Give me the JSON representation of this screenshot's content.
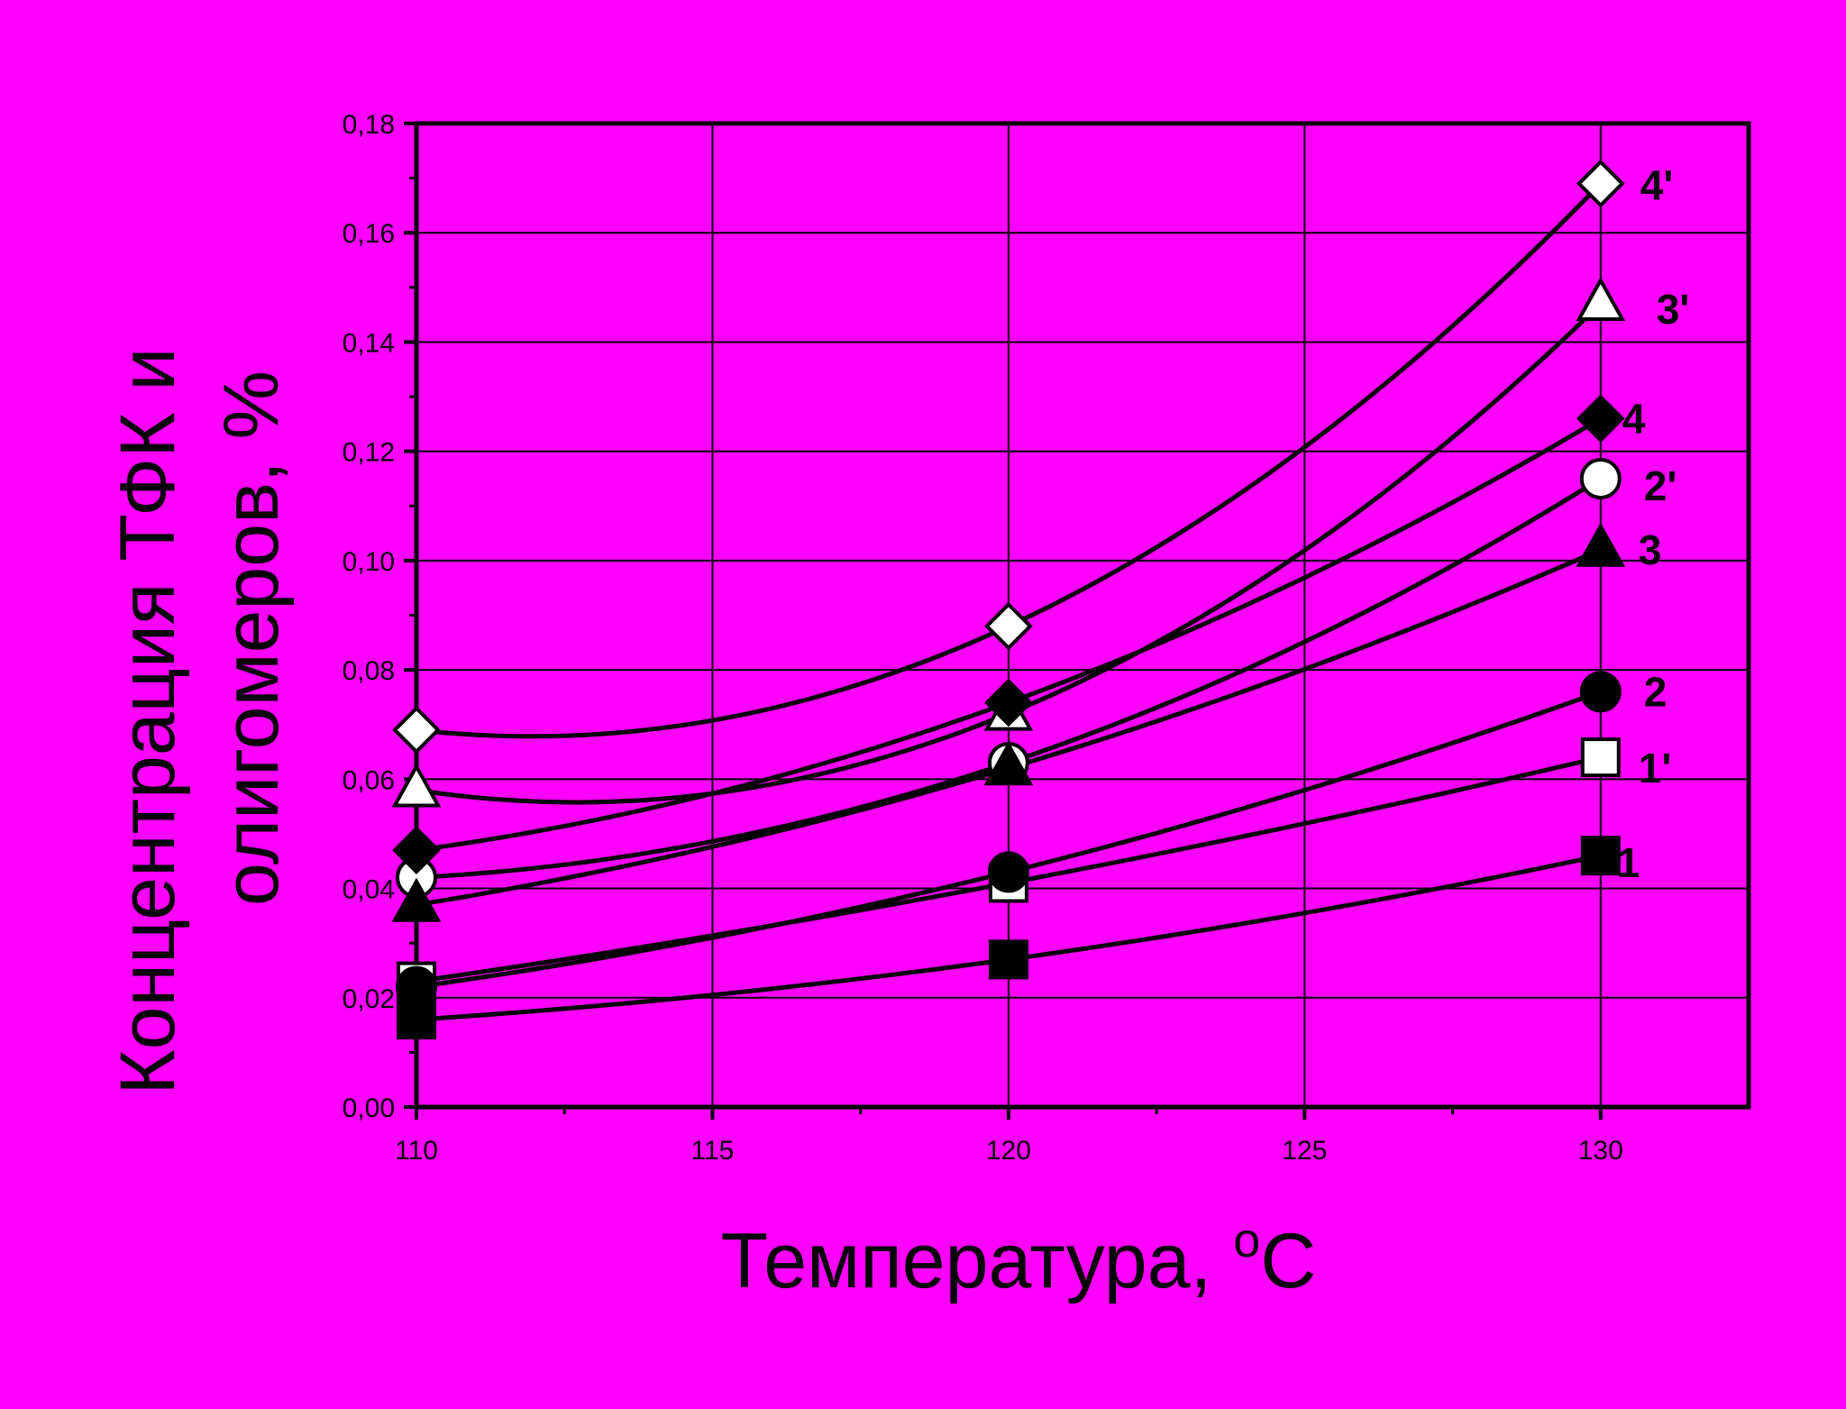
{
  "colors": {
    "background": "#FF00FF",
    "ink": "#000000",
    "open_marker_fill": "#FFFFFF"
  },
  "chart_data": {
    "type": "line",
    "title": "",
    "xlabel": "Температура, ",
    "xlabel_sup": "o",
    "xlabel_unit": "C",
    "ylabel_line1": "Концентрация ТФК и",
    "ylabel_line2": "олигомеров, %",
    "xlim": [
      110,
      132.5
    ],
    "ylim": [
      0,
      0.18
    ],
    "x_ticks": [
      110,
      115,
      120,
      125,
      130
    ],
    "x_tick_labels": [
      "110",
      "115",
      "120",
      "125",
      "130"
    ],
    "y_ticks": [
      0,
      0.02,
      0.04,
      0.06,
      0.08,
      0.1,
      0.12,
      0.14,
      0.16,
      0.18
    ],
    "y_tick_labels": [
      "0,00",
      "0,02",
      "0,04",
      "0,06",
      "0,08",
      "0,10",
      "0,12",
      "0,14",
      "0,16",
      "0,18"
    ],
    "grid": true,
    "x": [
      110,
      120,
      130
    ],
    "series": [
      {
        "name": "1",
        "marker": "square",
        "filled": true,
        "values": [
          0.016,
          0.027,
          0.046
        ]
      },
      {
        "name": "1'",
        "marker": "square",
        "filled": false,
        "values": [
          0.023,
          0.041,
          0.064
        ]
      },
      {
        "name": "2",
        "marker": "circle",
        "filled": true,
        "values": [
          0.022,
          0.043,
          0.076
        ]
      },
      {
        "name": "2'",
        "marker": "circle",
        "filled": false,
        "values": [
          0.042,
          0.063,
          0.115
        ]
      },
      {
        "name": "3",
        "marker": "triangle",
        "filled": true,
        "values": [
          0.037,
          0.062,
          0.102
        ]
      },
      {
        "name": "3'",
        "marker": "triangle",
        "filled": false,
        "values": [
          0.058,
          0.072,
          0.147
        ]
      },
      {
        "name": "4",
        "marker": "diamond",
        "filled": true,
        "values": [
          0.047,
          0.074,
          0.126
        ]
      },
      {
        "name": "4'",
        "marker": "diamond",
        "filled": false,
        "values": [
          0.069,
          0.088,
          0.169
        ]
      }
    ]
  }
}
